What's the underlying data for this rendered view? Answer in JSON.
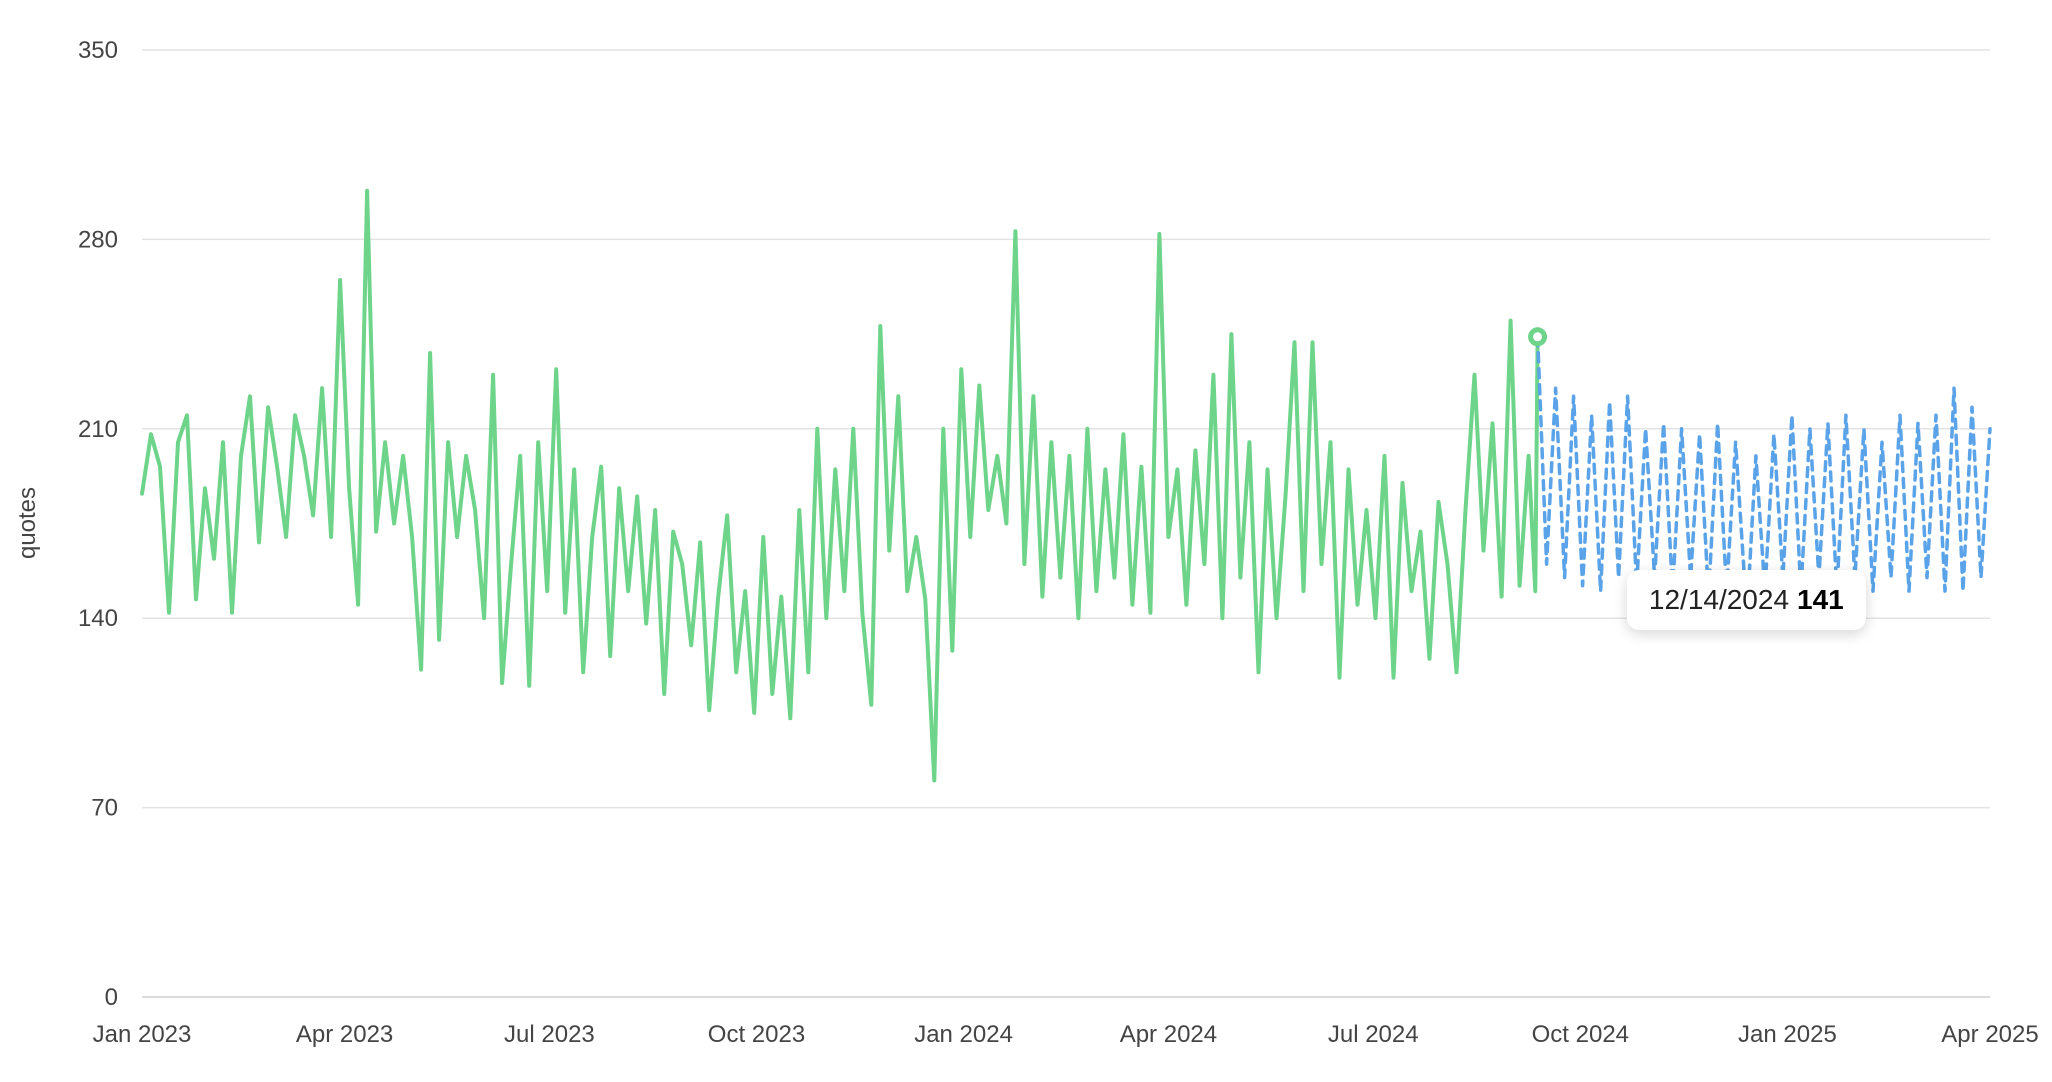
{
  "chart_data": {
    "type": "line",
    "ylabel": "quotes",
    "ylim": [
      0,
      350
    ],
    "yticks": [
      0,
      70,
      140,
      210,
      280,
      350
    ],
    "xrange": [
      "2023-01-01",
      "2025-04-01"
    ],
    "xticks": [
      {
        "date": "2023-01-01",
        "label": "Jan 2023"
      },
      {
        "date": "2023-04-01",
        "label": "Apr 2023"
      },
      {
        "date": "2023-07-01",
        "label": "Jul 2023"
      },
      {
        "date": "2023-10-01",
        "label": "Oct 2023"
      },
      {
        "date": "2024-01-01",
        "label": "Jan 2024"
      },
      {
        "date": "2024-04-01",
        "label": "Apr 2024"
      },
      {
        "date": "2024-07-01",
        "label": "Jul 2024"
      },
      {
        "date": "2024-10-01",
        "label": "Oct 2024"
      },
      {
        "date": "2025-01-01",
        "label": "Jan 2025"
      },
      {
        "date": "2025-04-01",
        "label": "Apr 2025"
      }
    ],
    "grid": true,
    "series": [
      {
        "style": "solid",
        "color": "#6dd48a",
        "points": [
          [
            "2023-01-01",
            186
          ],
          [
            "2023-01-05",
            208
          ],
          [
            "2023-01-09",
            196
          ],
          [
            "2023-01-13",
            142
          ],
          [
            "2023-01-17",
            205
          ],
          [
            "2023-01-21",
            215
          ],
          [
            "2023-01-25",
            147
          ],
          [
            "2023-01-29",
            188
          ],
          [
            "2023-02-02",
            162
          ],
          [
            "2023-02-06",
            205
          ],
          [
            "2023-02-10",
            142
          ],
          [
            "2023-02-14",
            200
          ],
          [
            "2023-02-18",
            222
          ],
          [
            "2023-02-22",
            168
          ],
          [
            "2023-02-26",
            218
          ],
          [
            "2023-03-02",
            196
          ],
          [
            "2023-03-06",
            170
          ],
          [
            "2023-03-10",
            215
          ],
          [
            "2023-03-14",
            200
          ],
          [
            "2023-03-18",
            178
          ],
          [
            "2023-03-22",
            225
          ],
          [
            "2023-03-26",
            170
          ],
          [
            "2023-03-30",
            265
          ],
          [
            "2023-04-03",
            188
          ],
          [
            "2023-04-07",
            145
          ],
          [
            "2023-04-11",
            298
          ],
          [
            "2023-04-15",
            172
          ],
          [
            "2023-04-19",
            205
          ],
          [
            "2023-04-23",
            175
          ],
          [
            "2023-04-27",
            200
          ],
          [
            "2023-05-01",
            170
          ],
          [
            "2023-05-05",
            121
          ],
          [
            "2023-05-09",
            238
          ],
          [
            "2023-05-13",
            132
          ],
          [
            "2023-05-17",
            205
          ],
          [
            "2023-05-21",
            170
          ],
          [
            "2023-05-25",
            200
          ],
          [
            "2023-05-29",
            180
          ],
          [
            "2023-06-02",
            140
          ],
          [
            "2023-06-06",
            230
          ],
          [
            "2023-06-10",
            116
          ],
          [
            "2023-06-14",
            160
          ],
          [
            "2023-06-18",
            200
          ],
          [
            "2023-06-22",
            115
          ],
          [
            "2023-06-26",
            205
          ],
          [
            "2023-06-30",
            150
          ],
          [
            "2023-07-04",
            232
          ],
          [
            "2023-07-08",
            142
          ],
          [
            "2023-07-12",
            195
          ],
          [
            "2023-07-16",
            120
          ],
          [
            "2023-07-20",
            170
          ],
          [
            "2023-07-24",
            196
          ],
          [
            "2023-07-28",
            126
          ],
          [
            "2023-08-01",
            188
          ],
          [
            "2023-08-05",
            150
          ],
          [
            "2023-08-09",
            185
          ],
          [
            "2023-08-13",
            138
          ],
          [
            "2023-08-17",
            180
          ],
          [
            "2023-08-21",
            112
          ],
          [
            "2023-08-25",
            172
          ],
          [
            "2023-08-29",
            160
          ],
          [
            "2023-09-02",
            130
          ],
          [
            "2023-09-06",
            168
          ],
          [
            "2023-09-10",
            106
          ],
          [
            "2023-09-14",
            148
          ],
          [
            "2023-09-18",
            178
          ],
          [
            "2023-09-22",
            120
          ],
          [
            "2023-09-26",
            150
          ],
          [
            "2023-09-30",
            105
          ],
          [
            "2023-10-04",
            170
          ],
          [
            "2023-10-08",
            112
          ],
          [
            "2023-10-12",
            148
          ],
          [
            "2023-10-16",
            103
          ],
          [
            "2023-10-20",
            180
          ],
          [
            "2023-10-24",
            120
          ],
          [
            "2023-10-28",
            210
          ],
          [
            "2023-11-01",
            140
          ],
          [
            "2023-11-05",
            195
          ],
          [
            "2023-11-09",
            150
          ],
          [
            "2023-11-13",
            210
          ],
          [
            "2023-11-17",
            142
          ],
          [
            "2023-11-21",
            108
          ],
          [
            "2023-11-25",
            248
          ],
          [
            "2023-11-29",
            165
          ],
          [
            "2023-12-03",
            222
          ],
          [
            "2023-12-07",
            150
          ],
          [
            "2023-12-11",
            170
          ],
          [
            "2023-12-15",
            147
          ],
          [
            "2023-12-19",
            80
          ],
          [
            "2023-12-23",
            210
          ],
          [
            "2023-12-27",
            128
          ],
          [
            "2023-12-31",
            232
          ],
          [
            "2024-01-04",
            170
          ],
          [
            "2024-01-08",
            226
          ],
          [
            "2024-01-12",
            180
          ],
          [
            "2024-01-16",
            200
          ],
          [
            "2024-01-20",
            175
          ],
          [
            "2024-01-24",
            283
          ],
          [
            "2024-01-28",
            160
          ],
          [
            "2024-02-01",
            222
          ],
          [
            "2024-02-05",
            148
          ],
          [
            "2024-02-09",
            205
          ],
          [
            "2024-02-13",
            155
          ],
          [
            "2024-02-17",
            200
          ],
          [
            "2024-02-21",
            140
          ],
          [
            "2024-02-25",
            210
          ],
          [
            "2024-02-29",
            150
          ],
          [
            "2024-03-04",
            195
          ],
          [
            "2024-03-08",
            155
          ],
          [
            "2024-03-12",
            208
          ],
          [
            "2024-03-16",
            145
          ],
          [
            "2024-03-20",
            196
          ],
          [
            "2024-03-24",
            142
          ],
          [
            "2024-03-28",
            282
          ],
          [
            "2024-04-01",
            170
          ],
          [
            "2024-04-05",
            195
          ],
          [
            "2024-04-09",
            145
          ],
          [
            "2024-04-13",
            202
          ],
          [
            "2024-04-17",
            160
          ],
          [
            "2024-04-21",
            230
          ],
          [
            "2024-04-25",
            140
          ],
          [
            "2024-04-29",
            245
          ],
          [
            "2024-05-03",
            155
          ],
          [
            "2024-05-07",
            205
          ],
          [
            "2024-05-11",
            120
          ],
          [
            "2024-05-15",
            195
          ],
          [
            "2024-05-19",
            140
          ],
          [
            "2024-05-23",
            185
          ],
          [
            "2024-05-27",
            242
          ],
          [
            "2024-05-31",
            150
          ],
          [
            "2024-06-04",
            242
          ],
          [
            "2024-06-08",
            160
          ],
          [
            "2024-06-12",
            205
          ],
          [
            "2024-06-16",
            118
          ],
          [
            "2024-06-20",
            195
          ],
          [
            "2024-06-24",
            145
          ],
          [
            "2024-06-28",
            180
          ],
          [
            "2024-07-02",
            140
          ],
          [
            "2024-07-06",
            200
          ],
          [
            "2024-07-10",
            118
          ],
          [
            "2024-07-14",
            190
          ],
          [
            "2024-07-18",
            150
          ],
          [
            "2024-07-22",
            172
          ],
          [
            "2024-07-26",
            125
          ],
          [
            "2024-07-30",
            183
          ],
          [
            "2024-08-03",
            160
          ],
          [
            "2024-08-07",
            120
          ],
          [
            "2024-08-11",
            180
          ],
          [
            "2024-08-15",
            230
          ],
          [
            "2024-08-19",
            165
          ],
          [
            "2024-08-23",
            212
          ],
          [
            "2024-08-27",
            148
          ],
          [
            "2024-08-31",
            250
          ],
          [
            "2024-09-04",
            152
          ],
          [
            "2024-09-08",
            200
          ],
          [
            "2024-09-11",
            150
          ],
          [
            "2024-09-12",
            244
          ]
        ]
      },
      {
        "style": "dashed",
        "color": "#5aa3e8",
        "points": [
          [
            "2024-09-12",
            244
          ],
          [
            "2024-09-16",
            160
          ],
          [
            "2024-09-20",
            225
          ],
          [
            "2024-09-24",
            155
          ],
          [
            "2024-09-28",
            222
          ],
          [
            "2024-10-02",
            152
          ],
          [
            "2024-10-06",
            215
          ],
          [
            "2024-10-10",
            150
          ],
          [
            "2024-10-14",
            220
          ],
          [
            "2024-10-18",
            155
          ],
          [
            "2024-10-22",
            222
          ],
          [
            "2024-10-26",
            152
          ],
          [
            "2024-10-30",
            210
          ],
          [
            "2024-11-03",
            155
          ],
          [
            "2024-11-07",
            212
          ],
          [
            "2024-11-11",
            150
          ],
          [
            "2024-11-15",
            210
          ],
          [
            "2024-11-19",
            155
          ],
          [
            "2024-11-23",
            208
          ],
          [
            "2024-11-27",
            148
          ],
          [
            "2024-12-01",
            212
          ],
          [
            "2024-12-05",
            150
          ],
          [
            "2024-12-09",
            205
          ],
          [
            "2024-12-14",
            141
          ],
          [
            "2024-12-18",
            200
          ],
          [
            "2024-12-22",
            150
          ],
          [
            "2024-12-26",
            208
          ],
          [
            "2024-12-30",
            155
          ],
          [
            "2025-01-03",
            215
          ],
          [
            "2025-01-07",
            150
          ],
          [
            "2025-01-11",
            210
          ],
          [
            "2025-01-15",
            155
          ],
          [
            "2025-01-19",
            212
          ],
          [
            "2025-01-23",
            150
          ],
          [
            "2025-01-27",
            215
          ],
          [
            "2025-01-31",
            155
          ],
          [
            "2025-02-04",
            210
          ],
          [
            "2025-02-08",
            150
          ],
          [
            "2025-02-12",
            205
          ],
          [
            "2025-02-16",
            155
          ],
          [
            "2025-02-20",
            215
          ],
          [
            "2025-02-24",
            150
          ],
          [
            "2025-02-28",
            212
          ],
          [
            "2025-03-04",
            155
          ],
          [
            "2025-03-08",
            215
          ],
          [
            "2025-03-12",
            150
          ],
          [
            "2025-03-16",
            225
          ],
          [
            "2025-03-20",
            150
          ],
          [
            "2025-03-24",
            218
          ],
          [
            "2025-03-28",
            155
          ],
          [
            "2025-04-01",
            210
          ]
        ]
      }
    ],
    "highlight_point": {
      "date": "2024-09-12",
      "value": 244
    },
    "tooltip": {
      "date": "12/14/2024",
      "value": "141",
      "anchor_date": "2024-12-14",
      "anchor_value": 141
    }
  }
}
